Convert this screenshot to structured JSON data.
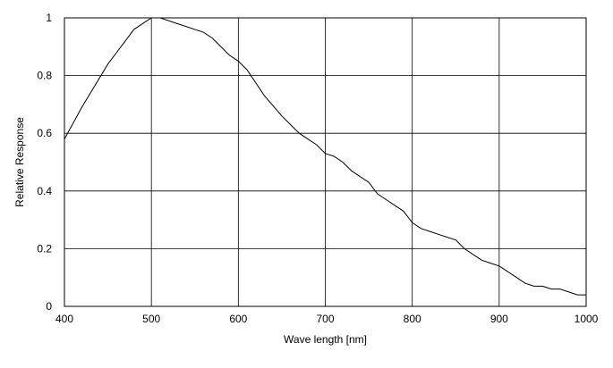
{
  "chart_data": {
    "type": "line",
    "xlabel": "Wave length [nm]",
    "ylabel": "Relative Response",
    "xlim": [
      400,
      1000
    ],
    "ylim": [
      0,
      1
    ],
    "grid": true,
    "x_ticks": [
      {
        "value": 400,
        "label": "400"
      },
      {
        "value": 500,
        "label": "500"
      },
      {
        "value": 600,
        "label": "600"
      },
      {
        "value": 700,
        "label": "700"
      },
      {
        "value": 800,
        "label": "800"
      },
      {
        "value": 900,
        "label": "900"
      },
      {
        "value": 1000,
        "label": "1000"
      }
    ],
    "y_ticks": [
      {
        "value": 0,
        "label": "0"
      },
      {
        "value": 0.2,
        "label": "0.2"
      },
      {
        "value": 0.4,
        "label": "0.4"
      },
      {
        "value": 0.6,
        "label": "0.6"
      },
      {
        "value": 0.8,
        "label": "0.8"
      },
      {
        "value": 1,
        "label": "1"
      }
    ],
    "series": [
      {
        "x": [
          400,
          420,
          450,
          480,
          500,
          510,
          530,
          560,
          570,
          590,
          600,
          610,
          630,
          650,
          660,
          670,
          680,
          690,
          700,
          710,
          720,
          730,
          740,
          750,
          760,
          770,
          780,
          790,
          800,
          810,
          820,
          830,
          840,
          850,
          860,
          870,
          880,
          890,
          900,
          910,
          920,
          930,
          940,
          950,
          960,
          970,
          980,
          990,
          1000
        ],
        "y": [
          0.58,
          0.69,
          0.84,
          0.96,
          1.0,
          1.0,
          0.98,
          0.95,
          0.93,
          0.87,
          0.85,
          0.82,
          0.73,
          0.66,
          0.63,
          0.6,
          0.58,
          0.56,
          0.53,
          0.52,
          0.5,
          0.47,
          0.45,
          0.43,
          0.39,
          0.37,
          0.35,
          0.33,
          0.29,
          0.27,
          0.26,
          0.25,
          0.24,
          0.23,
          0.2,
          0.18,
          0.16,
          0.15,
          0.14,
          0.12,
          0.1,
          0.08,
          0.07,
          0.07,
          0.06,
          0.06,
          0.05,
          0.04,
          0.04
        ]
      }
    ]
  }
}
